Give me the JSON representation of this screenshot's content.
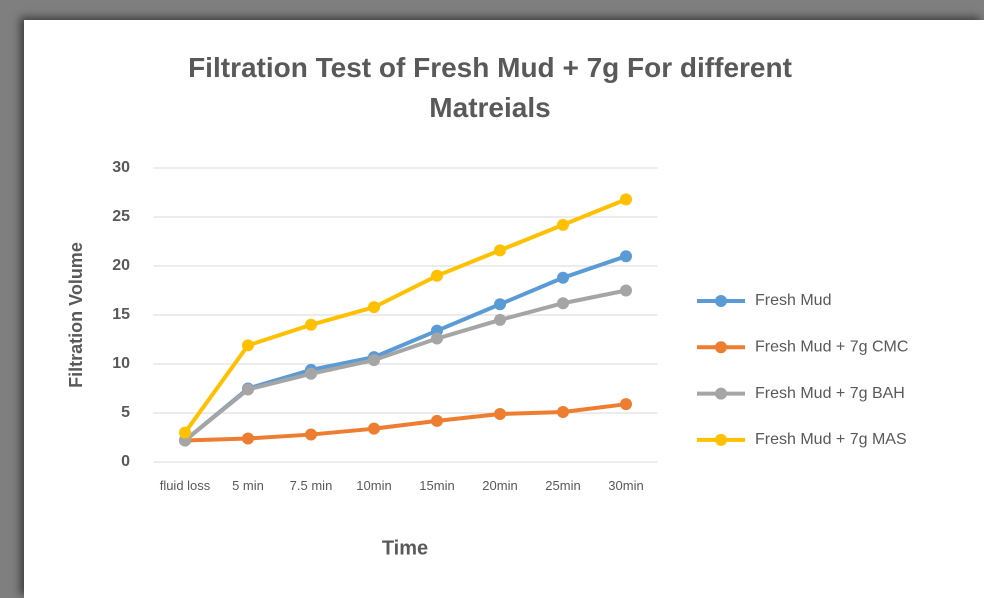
{
  "chart_data": {
    "type": "line",
    "title": "Filtration Test of Fresh Mud + 7g For different Matreials",
    "xlabel": "Time",
    "ylabel": "Filtration Volume",
    "categories": [
      "fluid loss",
      "5 min",
      "7.5 min",
      "10min",
      "15min",
      "20min",
      "25min",
      "30min"
    ],
    "series": [
      {
        "name": "Fresh Mud",
        "color": "#5b9bd5",
        "values": [
          2.2,
          7.5,
          9.4,
          10.7,
          13.4,
          16.1,
          18.8,
          21.0
        ]
      },
      {
        "name": "Fresh Mud + 7g CMC",
        "color": "#ed7d31",
        "values": [
          2.2,
          2.4,
          2.8,
          3.4,
          4.2,
          4.9,
          5.1,
          5.9
        ]
      },
      {
        "name": "Fresh Mud + 7g BAH",
        "color": "#a5a5a5",
        "values": [
          2.2,
          7.4,
          9.0,
          10.4,
          12.6,
          14.5,
          16.2,
          17.5
        ]
      },
      {
        "name": "Fresh Mud + 7g MAS",
        "color": "#ffc000",
        "values": [
          3.0,
          11.9,
          14.0,
          15.8,
          19.0,
          21.6,
          24.2,
          26.8
        ]
      }
    ],
    "ylim": [
      0,
      30
    ],
    "yticks": [
      0,
      5,
      10,
      15,
      20,
      25,
      30
    ],
    "grid": true,
    "legend": "right"
  }
}
